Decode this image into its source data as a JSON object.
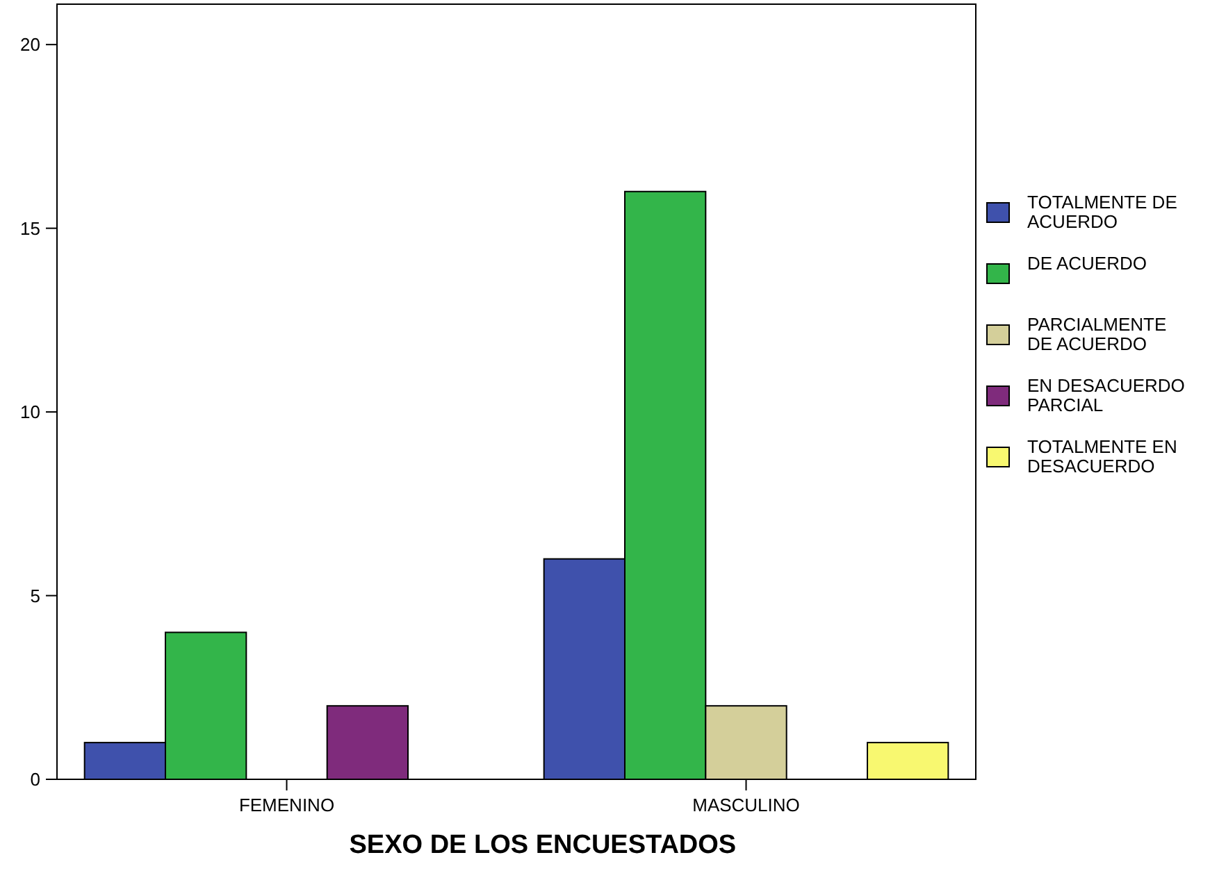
{
  "chart_data": {
    "type": "bar",
    "xlabel": "SEXO DE LOS ENCUESTADOS",
    "categories": [
      "FEMENINO",
      "MASCULINO"
    ],
    "series": [
      {
        "name": "TOTALMENTE DE ACUERDO",
        "color": "#3f51ac",
        "values": [
          1,
          6
        ]
      },
      {
        "name": "DE ACUERDO",
        "color": "#33b54a",
        "values": [
          4,
          16
        ]
      },
      {
        "name": "PARCIALMENTE DE ACUERDO",
        "color": "#d4cf9a",
        "values": [
          null,
          2
        ]
      },
      {
        "name": "EN DESACUERDO PARCIAL",
        "color": "#7f2b7c",
        "values": [
          2,
          null
        ]
      },
      {
        "name": "TOTALMENTE EN DESACUERDO",
        "color": "#f8f870",
        "values": [
          null,
          1
        ]
      }
    ],
    "ylim": [
      0,
      21.1
    ],
    "yticks": [
      0,
      5,
      10,
      15,
      20
    ],
    "grid": false,
    "legend": "right"
  }
}
